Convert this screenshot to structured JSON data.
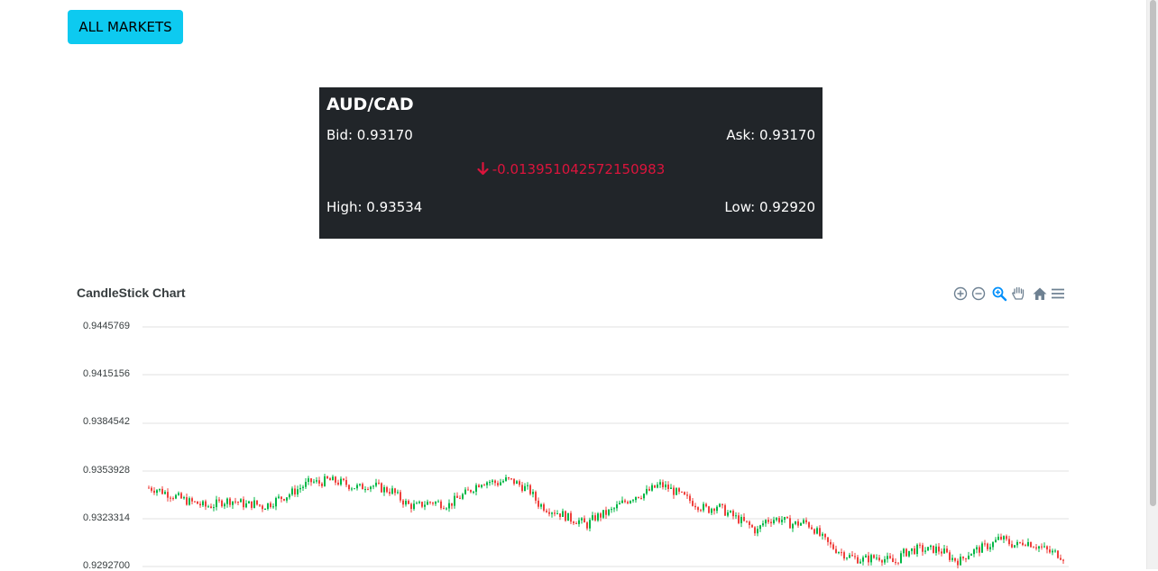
{
  "nav": {
    "all_markets_label": "ALL MARKETS"
  },
  "ticker": {
    "pair": "AUD/CAD",
    "bid_label": "Bid: 0.93170",
    "ask_label": "Ask: 0.93170",
    "change": "-0.013951042572150983",
    "high_label": "High: 0.93534",
    "low_label": "Low: 0.92920",
    "change_color": "#dc143c",
    "background": "#212529"
  },
  "toolbar": {
    "icons": [
      "zoom-in-icon",
      "zoom-out-icon",
      "magnifier-zoom-icon",
      "pan-hand-icon",
      "home-reset-icon",
      "menu-icon"
    ],
    "active_color": "#008ffb",
    "idle_color": "#6e8192"
  },
  "chart_data": {
    "type": "candlestick",
    "title": "CandleStick Chart",
    "y_ticks": [
      "0.9445769",
      "0.9415156",
      "0.9384542",
      "0.9353928",
      "0.9323314",
      "0.9292700"
    ],
    "ylim": [
      0.92927,
      0.9445769
    ],
    "grid": true,
    "up_color": "#00b746",
    "down_color": "#ef403c",
    "series_close": [
      0.9343,
      0.9342,
      0.934,
      0.9338,
      0.9336,
      0.9334,
      0.9333,
      0.9331,
      0.9332,
      0.9334,
      0.9335,
      0.9334,
      0.9332,
      0.9333,
      0.9331,
      0.9333,
      0.9336,
      0.9338,
      0.9341,
      0.9344,
      0.9347,
      0.9346,
      0.9348,
      0.9347,
      0.9346,
      0.9344,
      0.9343,
      0.9345,
      0.9344,
      0.9342,
      0.9341,
      0.9336,
      0.9332,
      0.9331,
      0.9333,
      0.9334,
      0.9333,
      0.9332,
      0.9336,
      0.9339,
      0.9343,
      0.9347,
      0.9347,
      0.9346,
      0.9348,
      0.9347,
      0.9344,
      0.9341,
      0.9333,
      0.933,
      0.9328,
      0.9326,
      0.9323,
      0.9322,
      0.9319,
      0.9324,
      0.9326,
      0.9328,
      0.9332,
      0.9335,
      0.9338,
      0.9339,
      0.9342,
      0.9345,
      0.9343,
      0.934,
      0.9337,
      0.9334,
      0.9331,
      0.9329,
      0.9332,
      0.9328,
      0.9325,
      0.9322,
      0.9319,
      0.9315,
      0.9322,
      0.9323,
      0.9323,
      0.932,
      0.932,
      0.9321,
      0.9317,
      0.9311,
      0.9306,
      0.9303,
      0.93,
      0.9298,
      0.9297,
      0.9298,
      0.9299,
      0.9297,
      0.9295,
      0.9301,
      0.9303,
      0.9304,
      0.9303,
      0.9304,
      0.9302,
      0.9298,
      0.9296,
      0.9301,
      0.9303,
      0.9305,
      0.9307,
      0.9311,
      0.9308,
      0.9306,
      0.9309,
      0.9307,
      0.9305,
      0.9302,
      0.9301,
      0.9298
    ]
  }
}
